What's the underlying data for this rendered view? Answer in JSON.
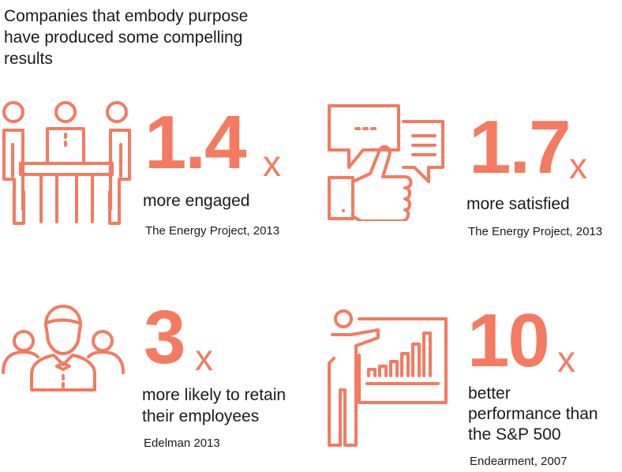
{
  "headline": "Companies that embody purpose have produced some compelling results",
  "accent_color": "#f47a60",
  "stats": [
    {
      "value": "1.4",
      "unit": "x",
      "description": "more engaged",
      "source": "The Energy Project, 2013",
      "icon": "meeting-table-icon"
    },
    {
      "value": "1.7",
      "unit": "x",
      "description": "more satisfied",
      "source": "The Energy Project, 2013",
      "icon": "thumbs-up-speech-icon"
    },
    {
      "value": "3",
      "unit": "x",
      "description_lines": [
        "more likely to retain",
        "their employees"
      ],
      "source": "Edelman 2013",
      "icon": "team-group-icon"
    },
    {
      "value": "10",
      "unit": "x",
      "description_lines": [
        "better",
        "performance than",
        "the S&P 500"
      ],
      "source": "Endearment, 2007",
      "icon": "presentation-chart-icon"
    }
  ]
}
